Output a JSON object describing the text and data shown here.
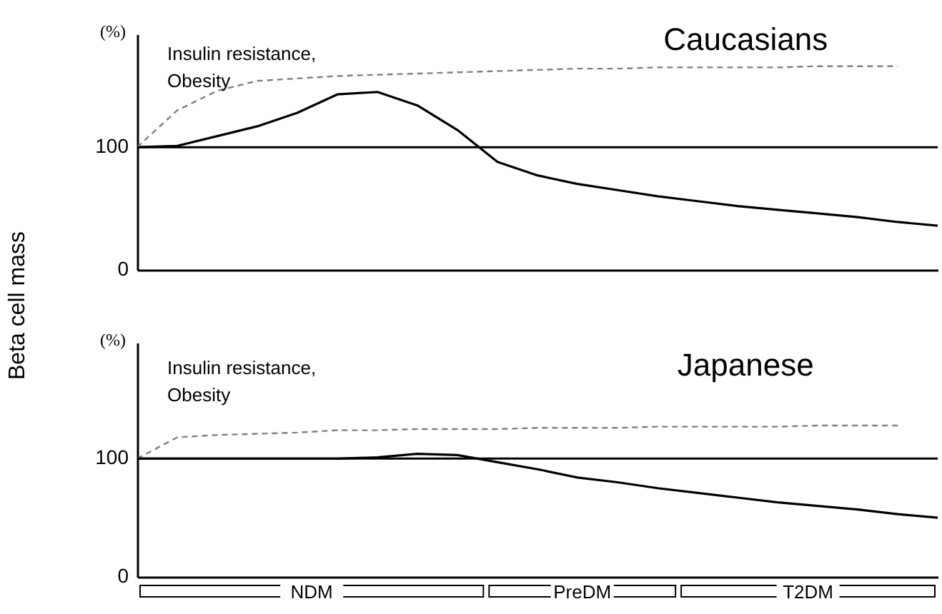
{
  "chart_data": [
    {
      "type": "line",
      "title": "Caucasians",
      "ylabel": "(%)",
      "ylim": [
        0,
        192
      ],
      "yticks": [
        0,
        100
      ],
      "tick_labels": "y",
      "annotations": [
        "Insulin resistance,\nObesity",
        "Beta cell mass"
      ],
      "categories": [
        null,
        null,
        null,
        null,
        null,
        null,
        null,
        null,
        null,
        null,
        null,
        null,
        null,
        null,
        null,
        null,
        null,
        null,
        null,
        null,
        null
      ],
      "ref_lines": [
        {
          "axis": "y",
          "value": 100,
          "color": "#000000"
        }
      ],
      "series": [
        {
          "color": "#000000",
          "line_style": "solid",
          "values": [
            100,
            101,
            109,
            117,
            128,
            143,
            145,
            134,
            114,
            88,
            77,
            70,
            65,
            60,
            56,
            52,
            49,
            46,
            43,
            39,
            36
          ]
        },
        {
          "color": "#808080",
          "line_style": "dashed",
          "values": [
            100,
            130,
            146,
            154,
            156,
            158,
            159,
            160,
            161,
            162,
            163,
            164,
            164,
            165,
            165,
            165,
            165,
            166,
            166,
            166,
            null
          ]
        }
      ]
    },
    {
      "type": "line",
      "title": "Japanese",
      "ylabel": "(%)",
      "ylim": [
        0,
        198
      ],
      "yticks": [
        0,
        100
      ],
      "tick_labels": "y",
      "annotations": [
        "Insulin resistance,\nObesity",
        "NDM",
        "PreDM",
        "T2DM"
      ],
      "categories": [
        null,
        null,
        null,
        null,
        null,
        null,
        null,
        null,
        null,
        null,
        null,
        null,
        null,
        null,
        null,
        null,
        null,
        null,
        null,
        null,
        null
      ],
      "ref_lines": [
        {
          "axis": "y",
          "value": 100,
          "color": "#000000"
        }
      ],
      "series": [
        {
          "color": "#000000",
          "line_style": "solid",
          "values": [
            100,
            100,
            100,
            100,
            100,
            100,
            101,
            104,
            103,
            97,
            91,
            84,
            80,
            75,
            71,
            67,
            63,
            60,
            57,
            53,
            50
          ]
        },
        {
          "color": "#808080",
          "line_style": "dashed",
          "values": [
            100,
            118,
            120,
            121,
            122,
            124,
            124,
            125,
            125,
            125,
            126,
            126,
            126,
            127,
            127,
            127,
            127,
            128,
            128,
            128,
            null
          ]
        }
      ]
    }
  ]
}
